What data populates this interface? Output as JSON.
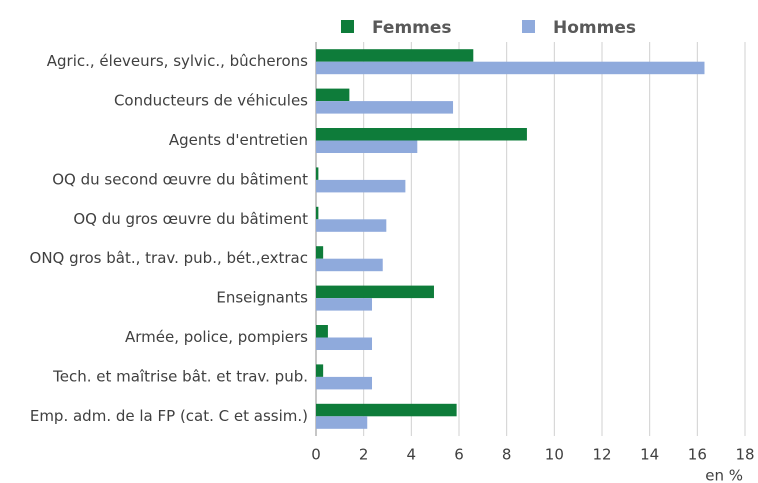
{
  "chart_data": {
    "type": "hbar",
    "categories": [
      "Agric., éleveurs, sylvic., bûcherons",
      "Conducteurs de véhicules",
      "Agents d'entretien",
      "OQ du second œuvre du bâtiment",
      "OQ du gros œuvre du bâtiment",
      "ONQ gros bât., trav. pub., bét.,extrac",
      "Enseignants",
      "Armée, police, pompiers",
      "Tech. et maîtrise bât. et trav. pub.",
      "Emp. adm. de la FP (cat. C et assim.)"
    ],
    "series": [
      {
        "name": "Femmes",
        "color": "#0e7c3a",
        "values": [
          6.6,
          1.4,
          8.85,
          0.1,
          0.1,
          0.3,
          4.95,
          0.5,
          0.3,
          5.9
        ]
      },
      {
        "name": "Hommes",
        "color": "#8faadc",
        "values": [
          16.3,
          5.75,
          4.25,
          3.75,
          2.95,
          2.8,
          2.35,
          2.35,
          2.35,
          2.15
        ]
      }
    ],
    "xlim": [
      0,
      18
    ],
    "xticks": [
      0,
      2,
      4,
      6,
      8,
      10,
      12,
      14,
      16,
      18
    ],
    "x_label": "en %",
    "grid": true,
    "legend": "top"
  }
}
